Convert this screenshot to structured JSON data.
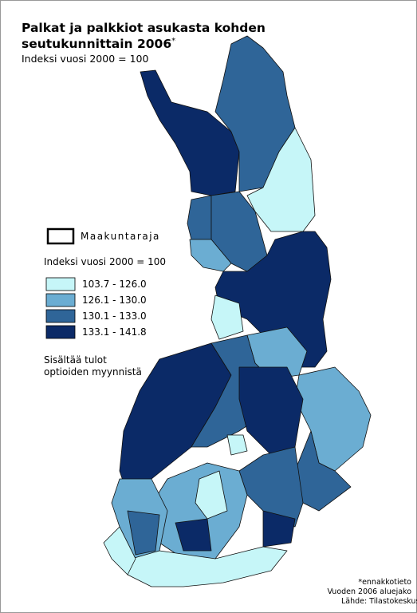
{
  "header": {
    "title": [
      "Palkat ja palkkiot asukasta kohden",
      "seutukunnittain 2006"
    ],
    "title_mark": "*",
    "subtitle": "Indeksi vuosi 2000 = 100"
  },
  "boundary_legend": "Maakuntaraja",
  "legend": {
    "title": "Indeksi vuosi 2000 = 100",
    "items": [
      {
        "label": "103.7 - 126.0",
        "color": "#c6f6f8"
      },
      {
        "label": "126.1 - 130.0",
        "color": "#6badd2"
      },
      {
        "label": "130.1 - 133.0",
        "color": "#2f6598"
      },
      {
        "label": "133.1 - 141.8",
        "color": "#0b2a67"
      }
    ]
  },
  "note": [
    "Sisältää tulot",
    "optioiden myynnistä"
  ],
  "footnotes": [
    "*ennakkotieto",
    "Vuoden 2006 aluejako",
    "Lähde: Tilastokeskus, Aluetilinpito"
  ]
}
